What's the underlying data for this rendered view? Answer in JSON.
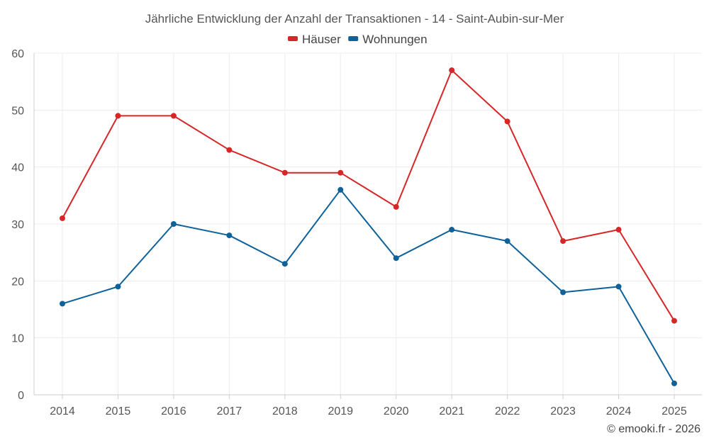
{
  "chart_data": {
    "type": "line",
    "title": "Jährliche Entwicklung der Anzahl der Transaktionen - 14 - Saint-Aubin-sur-Mer",
    "categories": [
      "2014",
      "2015",
      "2016",
      "2017",
      "2018",
      "2019",
      "2020",
      "2021",
      "2022",
      "2023",
      "2024",
      "2025"
    ],
    "series": [
      {
        "name": "Häuser",
        "color": "#d62728",
        "values": [
          31,
          49,
          49,
          43,
          39,
          39,
          33,
          57,
          48,
          27,
          29,
          13
        ]
      },
      {
        "name": "Wohnungen",
        "color": "#0e6199",
        "values": [
          16,
          19,
          30,
          28,
          23,
          36,
          24,
          29,
          27,
          18,
          19,
          2
        ]
      }
    ],
    "ylim": [
      0,
      60
    ],
    "yticks": [
      0,
      10,
      20,
      30,
      40,
      50,
      60
    ],
    "xlabel": "",
    "ylabel": "",
    "grid": true,
    "legend_position": "top-center"
  },
  "credit": "© emooki.fr - 2026"
}
